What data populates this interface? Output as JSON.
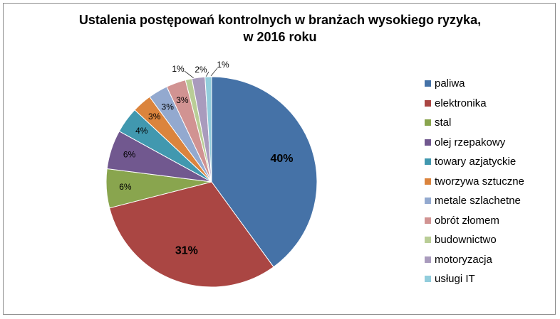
{
  "chart_data": {
    "type": "pie",
    "title_lines": [
      "Ustalenia postępowań kontrolnych w branżach wysokiego ryzyka,",
      "w 2016 roku"
    ],
    "legend_position": "right",
    "slices": [
      {
        "label": "paliwa",
        "value": 40,
        "display": "40%",
        "color": "#4572A7",
        "bold": true
      },
      {
        "label": "elektronika",
        "value": 31,
        "display": "31%",
        "color": "#AA4643",
        "bold": true
      },
      {
        "label": "stal",
        "value": 6,
        "display": "6%",
        "color": "#89A54E",
        "bold": false
      },
      {
        "label": "olej rzepakowy",
        "value": 6,
        "display": "6%",
        "color": "#71588F",
        "bold": false
      },
      {
        "label": "towary azjatyckie",
        "value": 4,
        "display": "4%",
        "color": "#4198AF",
        "bold": false
      },
      {
        "label": "tworzywa sztuczne",
        "value": 3,
        "display": "3%",
        "color": "#DB843D",
        "bold": false
      },
      {
        "label": "metale szlachetne",
        "value": 3,
        "display": "3%",
        "color": "#93A9CF",
        "bold": false
      },
      {
        "label": "obrót złomem",
        "value": 3,
        "display": "3%",
        "color": "#D19392",
        "bold": false
      },
      {
        "label": "budownictwo",
        "value": 1,
        "display": "1%",
        "color": "#B9CD96",
        "bold": false
      },
      {
        "label": "motoryzacja",
        "value": 2,
        "display": "2%",
        "color": "#A99BBD",
        "bold": false
      },
      {
        "label": "usługi  IT",
        "value": 1,
        "display": "1%",
        "color": "#92CDDC",
        "bold": false
      }
    ]
  }
}
